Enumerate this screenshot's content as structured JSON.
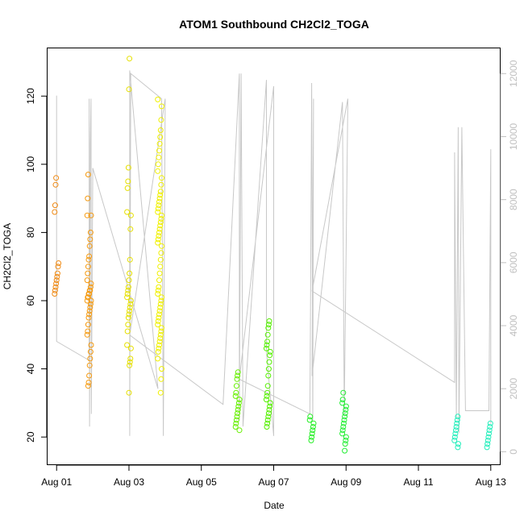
{
  "chart_data": {
    "type": "scatter",
    "title": "ATOM1 Southbound CH2Cl2_TOGA",
    "xlabel": "Date",
    "ylabel": "CH2Cl2_TOGA",
    "xlim": [
      -0.25,
      12.25
    ],
    "ylim": [
      12,
      134
    ],
    "y2lim": [
      -400,
      12800
    ],
    "x_ticks": [
      0,
      2,
      4,
      6,
      8,
      10,
      12
    ],
    "x_tick_labels": [
      "Aug 01",
      "Aug 03",
      "Aug 05",
      "Aug 07",
      "Aug 09",
      "Aug 11",
      "Aug 13"
    ],
    "y_ticks": [
      20,
      40,
      60,
      80,
      100,
      120
    ],
    "y2_ticks": [
      0,
      2000,
      4000,
      6000,
      8000,
      10000,
      12000
    ],
    "grid": false,
    "legend": "none",
    "colors": {
      "altitude_line": "#c8c8c8",
      "right_axis": "#c0c0c0",
      "left_axis": "#000000"
    },
    "series": [
      {
        "role": "CH2Cl2_TOGA measurements",
        "groups": [
          {
            "x": 0.0,
            "color": "#f08a14",
            "values": [
              62,
              63,
              64,
              65,
              66,
              67,
              68,
              70,
              71,
              86,
              88,
              94,
              96
            ]
          },
          {
            "x": 0.9,
            "color": "#f59a10",
            "values": [
              35,
              36,
              38,
              41,
              43,
              45,
              47,
              50,
              51,
              53,
              55,
              56,
              57,
              58,
              59,
              60,
              60,
              61,
              61,
              62,
              62,
              63,
              63,
              64,
              65,
              66,
              68,
              70,
              72,
              73,
              76,
              78,
              80,
              85,
              85,
              90,
              97
            ]
          },
          {
            "x": 2.0,
            "color": "#e6e000",
            "values": [
              33,
              41,
              42,
              43,
              46,
              47,
              51,
              53,
              55,
              56,
              57,
              58,
              59,
              60,
              61,
              62,
              63,
              64,
              66,
              68,
              72,
              81,
              85,
              86,
              93,
              95,
              99,
              122,
              131
            ]
          },
          {
            "x": 2.85,
            "color": "#f0f000",
            "values": [
              33,
              37,
              40,
              43,
              45,
              46,
              47,
              48,
              49,
              50,
              51,
              52,
              53,
              54,
              55,
              56,
              57,
              58,
              59,
              60,
              61,
              62,
              63,
              64,
              66,
              68,
              70,
              72,
              74,
              76,
              77,
              78,
              79,
              80,
              81,
              82,
              83,
              84,
              85,
              86,
              87,
              88,
              89,
              90,
              91,
              92,
              94,
              96,
              98,
              100,
              102,
              104,
              106,
              108,
              110,
              113,
              117,
              119
            ]
          },
          {
            "x": 5.0,
            "color": "#66f000",
            "values": [
              22,
              23,
              24,
              25,
              26,
              27,
              28,
              29,
              30,
              31,
              32,
              33,
              35,
              37,
              38,
              39
            ]
          },
          {
            "x": 5.85,
            "color": "#55f000",
            "values": [
              23,
              24,
              25,
              26,
              27,
              28,
              29,
              30,
              31,
              32,
              33,
              35,
              38,
              40,
              42,
              44,
              45,
              46,
              47,
              48,
              50,
              52,
              53,
              54
            ]
          },
          {
            "x": 7.05,
            "color": "#22ee22",
            "values": [
              19,
              20,
              21,
              22,
              23,
              24,
              25,
              26
            ]
          },
          {
            "x": 7.95,
            "color": "#22ee33",
            "values": [
              16,
              18,
              19,
              20,
              21,
              22,
              23,
              24,
              25,
              26,
              27,
              28,
              29,
              30,
              31,
              33
            ]
          },
          {
            "x": 11.05,
            "color": "#22eebb",
            "values": [
              17,
              18,
              19,
              20,
              21,
              22,
              23,
              24,
              25,
              26
            ]
          },
          {
            "x": 11.95,
            "color": "#22eebb",
            "values": [
              17,
              18,
              19,
              20,
              21,
              22,
              23,
              24
            ]
          }
        ]
      },
      {
        "role": "Altitude (right axis)",
        "path": [
          [
            0.0,
            11300
          ],
          [
            0.0,
            3500
          ],
          [
            0.9,
            2900
          ],
          [
            0.9,
            11200
          ],
          [
            0.91,
            800
          ],
          [
            0.93,
            9800
          ],
          [
            0.95,
            11200
          ],
          [
            0.96,
            1200
          ],
          [
            1.0,
            9000
          ],
          [
            2.8,
            2000
          ],
          [
            2.02,
            12100
          ],
          [
            2.02,
            500
          ],
          [
            2.05,
            12000
          ],
          [
            2.9,
            11200
          ],
          [
            2.95,
            500
          ],
          [
            3.0,
            11200
          ],
          [
            2.02,
            3700
          ],
          [
            4.6,
            1500
          ],
          [
            5.05,
            12000
          ],
          [
            5.05,
            1000
          ],
          [
            5.1,
            12000
          ],
          [
            5.15,
            800
          ],
          [
            5.8,
            11800
          ],
          [
            5.8,
            3200
          ],
          [
            6.0,
            500
          ],
          [
            6.0,
            11600
          ],
          [
            5.05,
            2300
          ],
          [
            7.0,
            1200
          ],
          [
            7.02,
            5100
          ],
          [
            7.05,
            11700
          ],
          [
            7.08,
            1000
          ],
          [
            7.1,
            11200
          ],
          [
            7.06,
            2400
          ],
          [
            7.9,
            11100
          ],
          [
            7.95,
            1200
          ],
          [
            8.05,
            11200
          ],
          [
            7.06,
            5100
          ],
          [
            11.0,
            2200
          ],
          [
            11.0,
            9500
          ],
          [
            11.05,
            1100
          ],
          [
            11.1,
            10300
          ],
          [
            11.12,
            600
          ],
          [
            11.2,
            10300
          ],
          [
            11.3,
            1300
          ],
          [
            11.95,
            1300
          ],
          [
            12.0,
            9600
          ],
          [
            12.0,
            900
          ]
        ]
      }
    ]
  }
}
